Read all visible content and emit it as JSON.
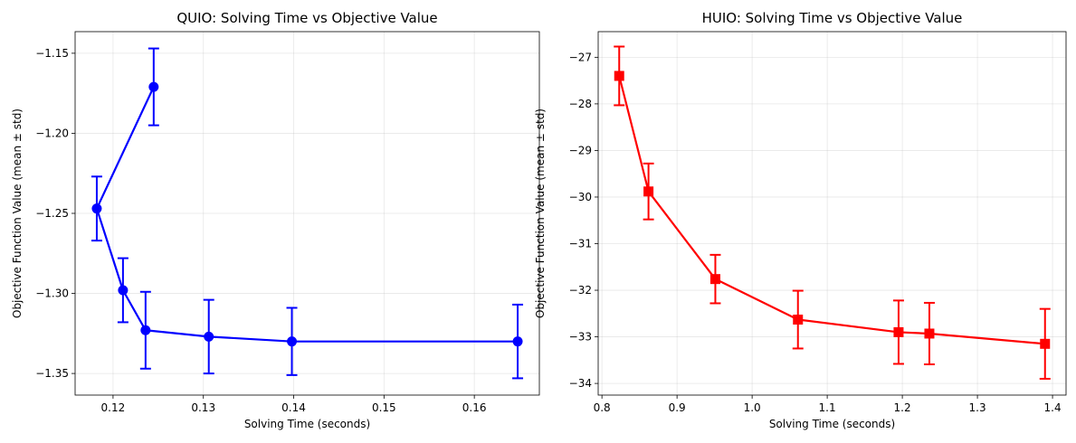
{
  "chart_data": [
    {
      "type": "line",
      "title": "QUIO: Solving Time vs Objective Value",
      "xlabel": "Solving Time (seconds)",
      "ylabel": "Objective Function Value (mean ± std)",
      "xlim": [
        0.1158,
        0.1672
      ],
      "ylim": [
        -1.3635,
        -1.1365
      ],
      "xticks": [
        0.12,
        0.13,
        0.14,
        0.15,
        0.16
      ],
      "xtick_labels": [
        "0.12",
        "0.13",
        "0.14",
        "0.15",
        "0.16"
      ],
      "yticks": [
        -1.15,
        -1.2,
        -1.25,
        -1.3,
        -1.35
      ],
      "ytick_labels": [
        "−1.15",
        "−1.20",
        "−1.25",
        "−1.30",
        "−1.35"
      ],
      "grid": true,
      "color": "#0000ff",
      "marker": "circle",
      "points": [
        {
          "x": 0.1245,
          "y": -1.171,
          "err": 0.024
        },
        {
          "x": 0.1182,
          "y": -1.247,
          "err": 0.02
        },
        {
          "x": 0.1211,
          "y": -1.298,
          "err": 0.02
        },
        {
          "x": 0.1236,
          "y": -1.323,
          "err": 0.024
        },
        {
          "x": 0.1306,
          "y": -1.327,
          "err": 0.023
        },
        {
          "x": 0.1398,
          "y": -1.33,
          "err": 0.021
        },
        {
          "x": 0.1648,
          "y": -1.33,
          "err": 0.023
        }
      ]
    },
    {
      "type": "line",
      "title": "HUIO: Solving Time vs Objective Value",
      "xlabel": "Solving Time (seconds)",
      "ylabel": "Objective Function Value (mean ± std)",
      "xlim": [
        0.795,
        1.418
      ],
      "ylim": [
        -34.25,
        -26.45
      ],
      "xticks": [
        0.8,
        0.9,
        1.0,
        1.1,
        1.2,
        1.3,
        1.4
      ],
      "xtick_labels": [
        "0.8",
        "0.9",
        "1.0",
        "1.1",
        "1.2",
        "1.3",
        "1.4"
      ],
      "yticks": [
        -27,
        -28,
        -29,
        -30,
        -31,
        -32,
        -33,
        -34
      ],
      "ytick_labels": [
        "−27",
        "−28",
        "−29",
        "−30",
        "−31",
        "−32",
        "−33",
        "−34"
      ],
      "grid": true,
      "color": "#ff0000",
      "marker": "square",
      "points": [
        {
          "x": 0.823,
          "y": -27.4,
          "err": 0.63
        },
        {
          "x": 0.862,
          "y": -29.88,
          "err": 0.6
        },
        {
          "x": 0.951,
          "y": -31.76,
          "err": 0.52
        },
        {
          "x": 1.061,
          "y": -32.63,
          "err": 0.62
        },
        {
          "x": 1.195,
          "y": -32.9,
          "err": 0.68
        },
        {
          "x": 1.236,
          "y": -32.93,
          "err": 0.66
        },
        {
          "x": 1.39,
          "y": -33.15,
          "err": 0.75
        }
      ]
    }
  ]
}
